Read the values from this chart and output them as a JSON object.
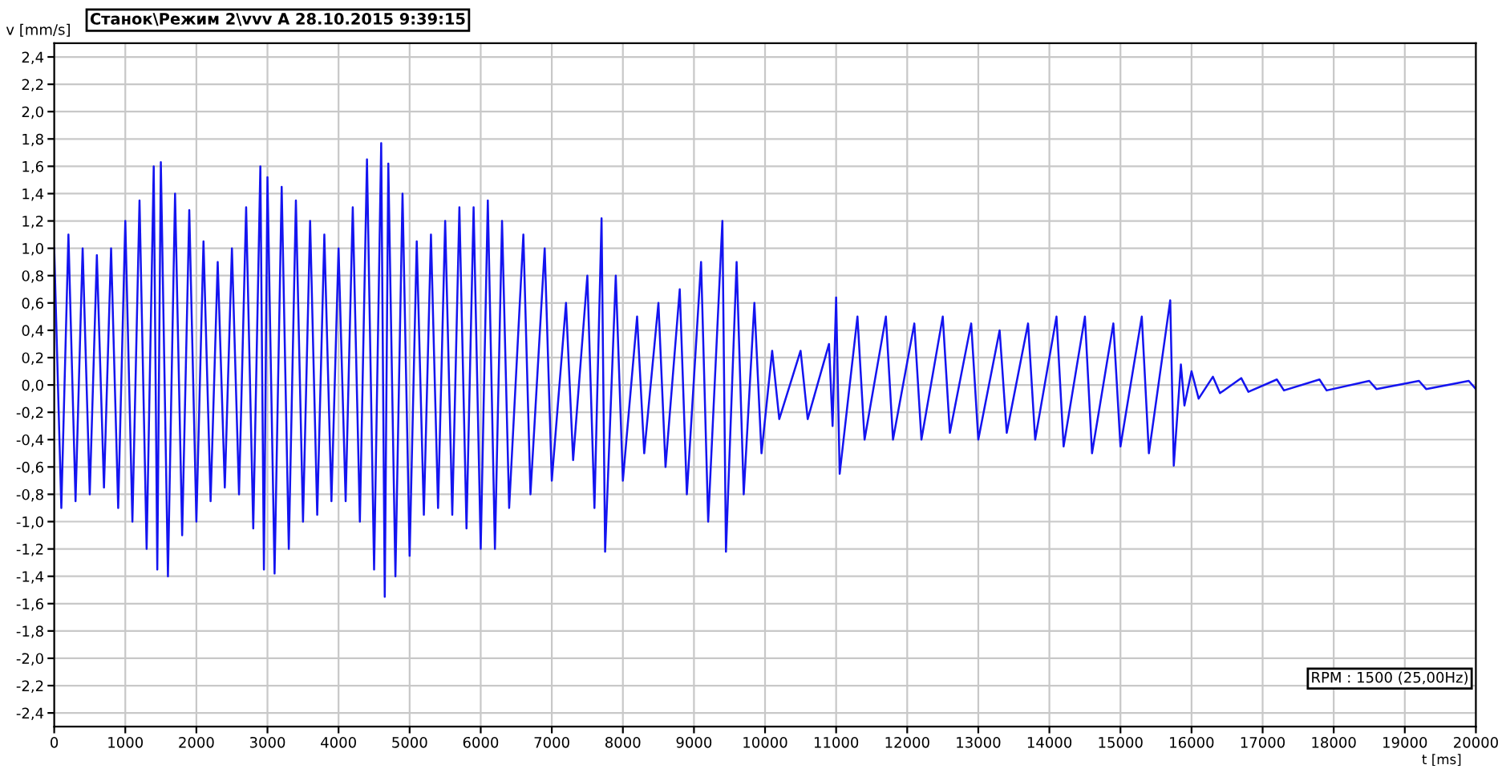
{
  "chart_data": {
    "type": "line",
    "title": "Станок\\Режим 2\\vvv A 28.10.2015 9:39:15",
    "xlabel": "t [ms]",
    "ylabel": "v [mm/s]",
    "annotations": [
      "RPM : 1500 (25,00Hz)"
    ],
    "xlim": [
      0,
      20000
    ],
    "ylim": [
      -2.5,
      2.5
    ],
    "xticks": [
      0,
      1000,
      2000,
      3000,
      4000,
      5000,
      6000,
      7000,
      8000,
      9000,
      10000,
      11000,
      12000,
      13000,
      14000,
      15000,
      16000,
      17000,
      18000,
      19000,
      20000
    ],
    "yticks": [
      {
        "value": -2.4,
        "label": "-2,4"
      },
      {
        "value": -2.2,
        "label": "-2,2"
      },
      {
        "value": -2.0,
        "label": "-2,0"
      },
      {
        "value": -1.8,
        "label": "-1,8"
      },
      {
        "value": -1.6,
        "label": "-1,6"
      },
      {
        "value": -1.4,
        "label": "-1,4"
      },
      {
        "value": -1.2,
        "label": "-1,2"
      },
      {
        "value": -1.0,
        "label": "-1,0"
      },
      {
        "value": -0.8,
        "label": "-0,8"
      },
      {
        "value": -0.6,
        "label": "-0,6"
      },
      {
        "value": -0.4,
        "label": "-0,4"
      },
      {
        "value": -0.2,
        "label": "-0,2"
      },
      {
        "value": 0,
        "label": "0,0"
      },
      {
        "value": 0.2,
        "label": "0,2"
      },
      {
        "value": 0.4,
        "label": "0,4"
      },
      {
        "value": 0.6,
        "label": "0,6"
      },
      {
        "value": 0.8,
        "label": "0,8"
      },
      {
        "value": 1.0,
        "label": "1,0"
      },
      {
        "value": 1.2,
        "label": "1,2"
      },
      {
        "value": 1.4,
        "label": "1,4"
      },
      {
        "value": 1.6,
        "label": "1,6"
      },
      {
        "value": 1.8,
        "label": "1,8"
      },
      {
        "value": 2.0,
        "label": "2,0"
      },
      {
        "value": 2.2,
        "label": "2,2"
      },
      {
        "value": 2.4,
        "label": "2,4"
      }
    ],
    "grid": true,
    "marker": "none",
    "line_style": "solid",
    "series": [
      {
        "color": "#1414f0",
        "x": [
          0,
          100,
          200,
          300,
          400,
          500,
          600,
          700,
          800,
          900,
          1000,
          1100,
          1200,
          1300,
          1400,
          1450,
          1500,
          1600,
          1700,
          1800,
          1900,
          2000,
          2100,
          2200,
          2300,
          2400,
          2500,
          2600,
          2700,
          2800,
          2900,
          2950,
          3000,
          3100,
          3200,
          3300,
          3400,
          3500,
          3600,
          3700,
          3800,
          3900,
          4000,
          4100,
          4200,
          4300,
          4400,
          4500,
          4600,
          4650,
          4700,
          4800,
          4900,
          5000,
          5100,
          5200,
          5300,
          5400,
          5500,
          5600,
          5700,
          5800,
          5900,
          6000,
          6100,
          6200,
          6300,
          6400,
          6600,
          6700,
          6900,
          7000,
          7200,
          7300,
          7500,
          7600,
          7700,
          7750,
          7900,
          8000,
          8200,
          8300,
          8500,
          8600,
          8800,
          8900,
          9100,
          9200,
          9400,
          9450,
          9600,
          9700,
          9850,
          9950,
          10100,
          10200,
          10500,
          10600,
          10900,
          10950,
          11000,
          11050,
          11300,
          11400,
          11700,
          11800,
          12100,
          12200,
          12500,
          12600,
          12900,
          13000,
          13300,
          13400,
          13700,
          13800,
          14100,
          14200,
          14500,
          14600,
          14900,
          15000,
          15300,
          15400,
          15700,
          15750,
          15850,
          15900,
          16000,
          16100,
          16300,
          16400,
          16700,
          16800,
          17200,
          17300,
          17800,
          17900,
          18500,
          18600,
          19200,
          19300,
          19900,
          20000
        ],
        "values": [
          1.0,
          -0.9,
          1.1,
          -0.85,
          1.0,
          -0.8,
          0.95,
          -0.75,
          1.0,
          -0.9,
          1.2,
          -1.0,
          1.35,
          -1.2,
          1.6,
          -1.35,
          1.63,
          -1.4,
          1.4,
          -1.1,
          1.28,
          -1.0,
          1.05,
          -0.85,
          0.9,
          -0.75,
          1.0,
          -0.8,
          1.3,
          -1.05,
          1.6,
          -1.35,
          1.52,
          -1.38,
          1.45,
          -1.2,
          1.35,
          -1.0,
          1.2,
          -0.95,
          1.1,
          -0.85,
          1.0,
          -0.85,
          1.3,
          -1.0,
          1.65,
          -1.35,
          1.77,
          -1.55,
          1.62,
          -1.4,
          1.4,
          -1.25,
          1.05,
          -0.95,
          1.1,
          -0.9,
          1.2,
          -0.95,
          1.3,
          -1.05,
          1.3,
          -1.2,
          1.35,
          -1.2,
          1.2,
          -0.9,
          1.1,
          -0.8,
          1.0,
          -0.7,
          0.6,
          -0.55,
          0.8,
          -0.9,
          1.22,
          -1.22,
          0.8,
          -0.7,
          0.5,
          -0.5,
          0.6,
          -0.6,
          0.7,
          -0.8,
          0.9,
          -1.0,
          1.2,
          -1.22,
          0.9,
          -0.8,
          0.6,
          -0.5,
          0.25,
          -0.25,
          0.25,
          -0.25,
          0.3,
          -0.3,
          0.64,
          -0.65,
          0.5,
          -0.4,
          0.5,
          -0.4,
          0.45,
          -0.4,
          0.5,
          -0.35,
          0.45,
          -0.4,
          0.4,
          -0.35,
          0.45,
          -0.4,
          0.5,
          -0.45,
          0.5,
          -0.5,
          0.45,
          -0.45,
          0.5,
          -0.5,
          0.62,
          -0.59,
          0.15,
          -0.15,
          0.1,
          -0.1,
          0.06,
          -0.06,
          0.05,
          -0.05,
          0.04,
          -0.04,
          0.04,
          -0.04,
          0.03,
          -0.03,
          0.03,
          -0.03,
          0.03,
          -0.03
        ]
      }
    ]
  }
}
